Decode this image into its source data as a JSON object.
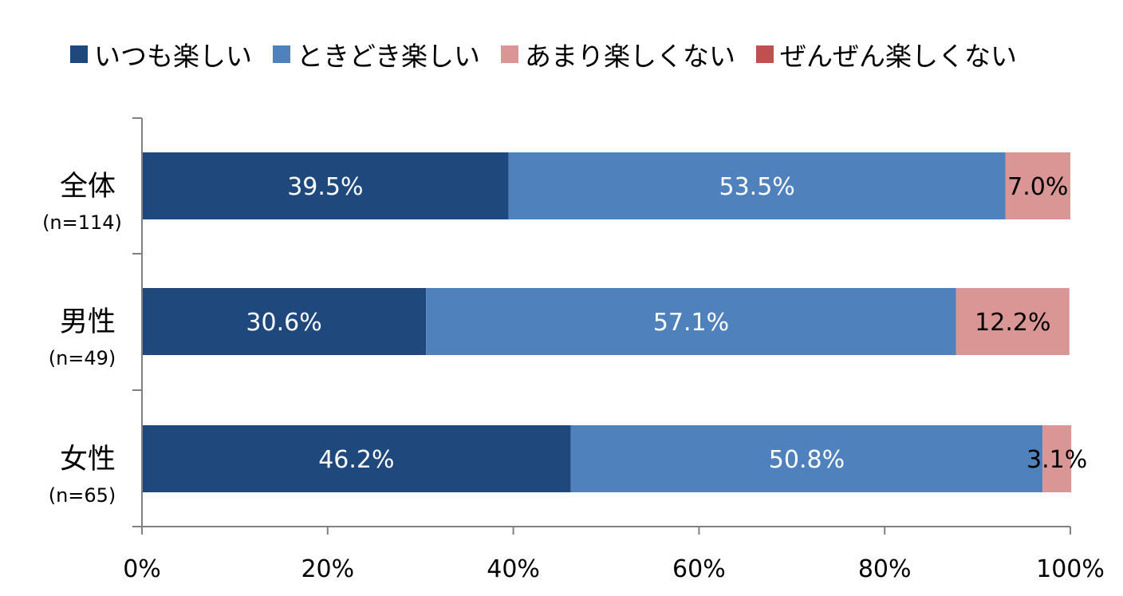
{
  "chart_data": {
    "type": "bar",
    "orientation": "horizontal",
    "stacked": true,
    "categories": [
      {
        "name": "全体",
        "n": "(n=114)"
      },
      {
        "name": "男性",
        "n": "(n=49)"
      },
      {
        "name": "女性",
        "n": "(n=65)"
      }
    ],
    "series": [
      {
        "name": "いつも楽しい",
        "color": "#1f497d",
        "label_color": "#ffffff",
        "values": [
          39.5,
          30.6,
          46.2
        ],
        "labels": [
          "39.5%",
          "30.6%",
          "46.2%"
        ]
      },
      {
        "name": "ときどき楽しい",
        "color": "#4f81bd",
        "label_color": "#ffffff",
        "values": [
          53.5,
          57.1,
          50.8
        ],
        "labels": [
          "53.5%",
          "57.1%",
          "50.8%"
        ]
      },
      {
        "name": "あまり楽しくない",
        "color": "#d99694",
        "label_color": "#000000",
        "values": [
          7.0,
          12.2,
          3.1
        ],
        "labels": [
          "7.0%",
          "12.2%",
          "3.1%"
        ]
      },
      {
        "name": "ぜんぜん楽しくない",
        "color": "#c0504d",
        "label_color": "#000000",
        "values": [
          0,
          0,
          0
        ],
        "labels": [
          "",
          "",
          ""
        ]
      }
    ],
    "xlim": [
      0,
      100
    ],
    "xticks": [
      "0%",
      "20%",
      "40%",
      "60%",
      "80%",
      "100%"
    ],
    "grid": false,
    "legend_position": "top"
  }
}
